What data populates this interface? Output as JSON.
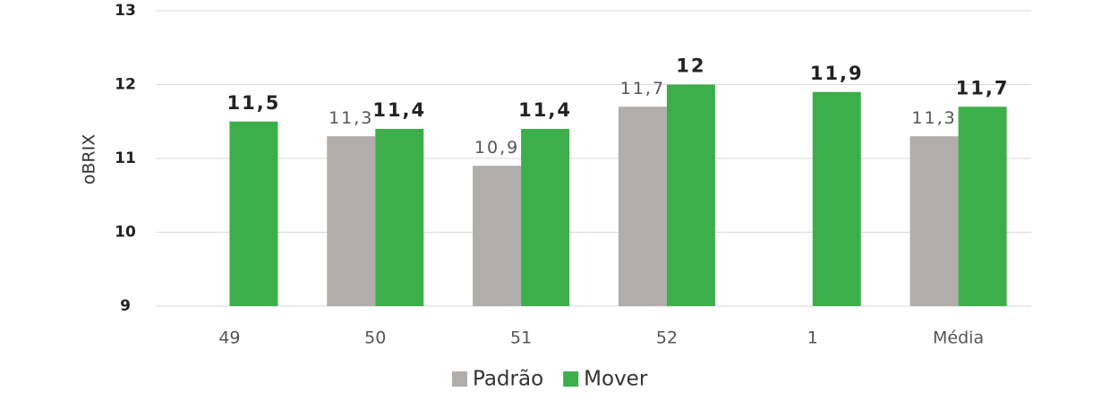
{
  "chart_data": {
    "type": "bar",
    "y_label": "oBRIX",
    "categories": [
      "49",
      "50",
      "51",
      "52",
      "1",
      "Média"
    ],
    "series": [
      {
        "name": "Padrão",
        "color": "#b0adab",
        "values": [
          null,
          11.3,
          10.9,
          11.7,
          null,
          11.3
        ],
        "value_labels": [
          null,
          "11,3",
          "10,9",
          "11,7",
          null,
          "11,3"
        ]
      },
      {
        "name": "Mover",
        "color": "#3daf4a",
        "values": [
          11.5,
          11.4,
          11.4,
          12,
          11.9,
          11.7
        ],
        "value_labels": [
          "11,5",
          "11,4",
          "11,4",
          "12",
          "11,9",
          "11,7"
        ]
      }
    ],
    "ylim": [
      9,
      13
    ],
    "yticks": [
      9,
      10,
      11,
      12,
      13
    ],
    "grid": true,
    "legend": "bottom"
  }
}
